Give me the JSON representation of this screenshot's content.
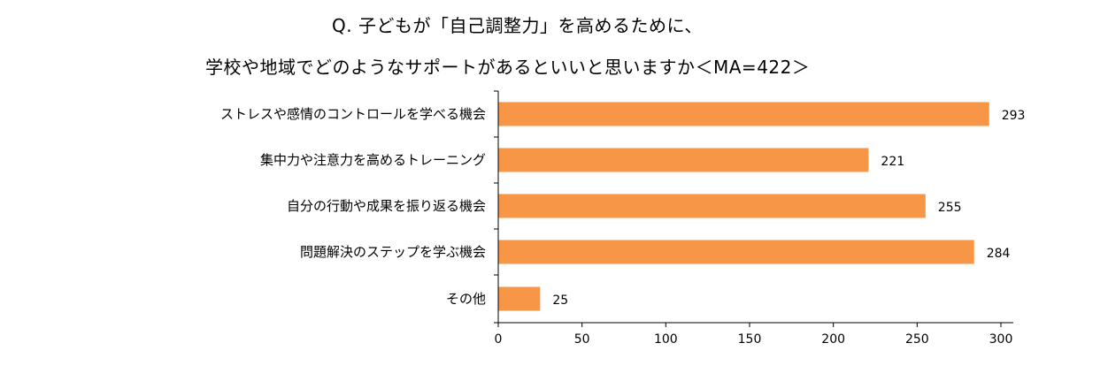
{
  "chart_data": {
    "type": "bar",
    "orientation": "horizontal",
    "title": [
      "Q. 子どもが「自己調整力」を高めるために、",
      "学校や地域でどのようなサポートがあるといいと思いますか＜MA=422＞"
    ],
    "categories": [
      "ストレスや感情のコントロールを学べる機会",
      "集中力や注意力を高めるトレーニング",
      "自分の行動や成果を振り返る機会",
      "問題解決のステップを学ぶ機会",
      "その他"
    ],
    "values": [
      293,
      221,
      255,
      284,
      25
    ],
    "xlim": [
      0,
      300
    ],
    "xticks": [
      0,
      50,
      100,
      150,
      200,
      250,
      300
    ],
    "bar_color": "#F79646",
    "grid": false,
    "legend": "none"
  }
}
